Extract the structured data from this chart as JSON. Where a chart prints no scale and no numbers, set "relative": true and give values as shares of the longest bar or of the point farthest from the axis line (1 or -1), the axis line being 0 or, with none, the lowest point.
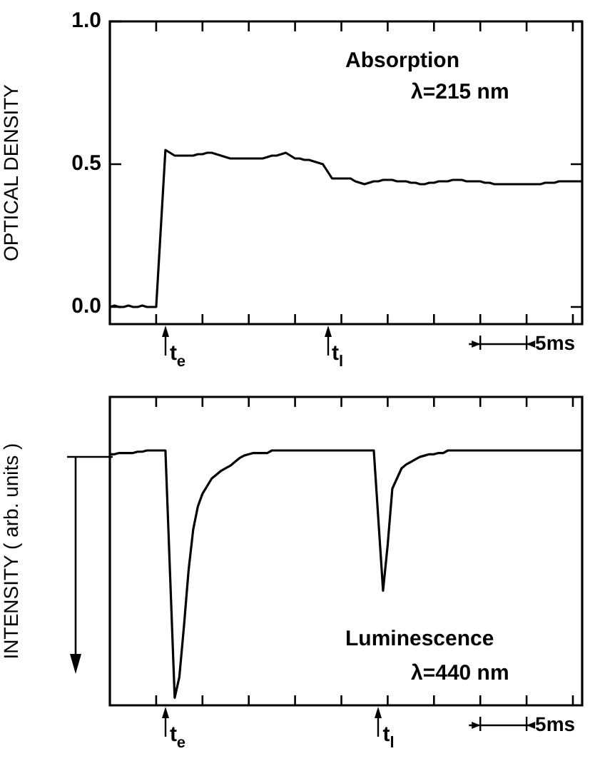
{
  "chart_data": [
    {
      "type": "line",
      "ylabel": "OPTICAL DENSITY",
      "ylim": [
        -0.06,
        1.0
      ],
      "categories": [
        null,
        null,
        null,
        null,
        null,
        null,
        null,
        null,
        null,
        null,
        null,
        null,
        null,
        null,
        null,
        null,
        null,
        null,
        null,
        null,
        null,
        null,
        null,
        null,
        null,
        null,
        null,
        null,
        null,
        null,
        null,
        null,
        null,
        null,
        null,
        null,
        null,
        null,
        null,
        null,
        null,
        null,
        null,
        null,
        null,
        null,
        null,
        null,
        null,
        null,
        null,
        null,
        null,
        null,
        null,
        null,
        null,
        null,
        null,
        null,
        null,
        null,
        null,
        null,
        null,
        null,
        null,
        null,
        null,
        null,
        null,
        null,
        null,
        null,
        null,
        null,
        null,
        null,
        null,
        null,
        null,
        null,
        null,
        null,
        null,
        null,
        null,
        null,
        null,
        null,
        null,
        null,
        null,
        null,
        null,
        null,
        null,
        null,
        null,
        null,
        null,
        null,
        null
      ],
      "yticks": [
        {
          "value": 0,
          "label": "0.0"
        },
        {
          "value": 0.5,
          "label": "0.5"
        },
        {
          "value": 1.0,
          "label": "1.0"
        }
      ],
      "tick_labels": "y",
      "series": [
        {
          "color": "#000000",
          "values": [
            0,
            0.005,
            0,
            0,
            0.005,
            0,
            0,
            0.005,
            0,
            0,
            0,
            null,
            0.55,
            0.54,
            0.53,
            0.53,
            0.53,
            0.53,
            0.53,
            0.535,
            0.535,
            0.54,
            0.54,
            0.535,
            0.53,
            0.525,
            0.52,
            0.52,
            0.52,
            0.52,
            0.52,
            0.52,
            0.52,
            0.52,
            0.525,
            0.53,
            0.53,
            0.535,
            0.54,
            0.53,
            0.52,
            0.52,
            0.515,
            0.515,
            0.51,
            0.505,
            0.5,
            null,
            0.45,
            0.45,
            0.45,
            0.45,
            0.45,
            0.44,
            0.435,
            0.43,
            0.435,
            0.44,
            0.44,
            0.445,
            0.445,
            0.445,
            0.44,
            0.44,
            0.44,
            0.435,
            0.435,
            0.43,
            0.43,
            0.435,
            0.435,
            0.44,
            0.44,
            0.44,
            0.445,
            0.445,
            0.445,
            0.44,
            0.44,
            0.44,
            0.44,
            0.435,
            0.435,
            0.43,
            0.43,
            0.43,
            0.43,
            0.43,
            0.43,
            0.43,
            0.43,
            0.43,
            0.43,
            0.43,
            0.435,
            0.435,
            0.435,
            0.44,
            0.44,
            0.44,
            0.44,
            0.44,
            0.44
          ]
        }
      ],
      "annotations": [
        "Absorption\nλ=215 nm",
        "t$_{e}$",
        "t$_{l}$",
        "5ms"
      ]
    },
    {
      "type": "line",
      "ylabel": "INTENSITY ( arb. units )",
      "relative": true,
      "categories": [
        null,
        null,
        null,
        null,
        null,
        null,
        null,
        null,
        null,
        null,
        null,
        null,
        null,
        null,
        null,
        null,
        null,
        null,
        null,
        null,
        null,
        null,
        null,
        null,
        null,
        null,
        null,
        null,
        null,
        null,
        null,
        null,
        null,
        null,
        null,
        null,
        null,
        null,
        null,
        null,
        null,
        null,
        null,
        null,
        null,
        null,
        null,
        null,
        null,
        null,
        null,
        null,
        null,
        null,
        null,
        null,
        null,
        null,
        null,
        null,
        null,
        null,
        null,
        null,
        null,
        null,
        null,
        null,
        null,
        null,
        null,
        null,
        null,
        null,
        null,
        null,
        null,
        null,
        null,
        null,
        null,
        null,
        null,
        null,
        null,
        null,
        null,
        null,
        null,
        null,
        null,
        null,
        null,
        null,
        null,
        null,
        null,
        null,
        null,
        null,
        null,
        null,
        null
      ],
      "tick_labels": false,
      "series": [
        {
          "color": "#000000",
          "values": [
            0.985,
            0.985,
            0.99,
            0.99,
            0.99,
            0.99,
            0.995,
            0.995,
            1,
            1,
            1,
            1,
            1,
            null,
            0.03,
            0.11,
            0.31,
            0.53,
            0.69,
            0.78,
            0.83,
            0.86,
            0.89,
            0.905,
            0.92,
            0.93,
            0.94,
            0.955,
            0.97,
            0.98,
            0.985,
            0.99,
            0.99,
            0.99,
            0.99,
            1,
            1,
            1,
            1,
            1,
            1,
            1,
            1,
            1,
            1,
            1,
            1,
            1,
            1,
            1,
            1,
            1,
            1,
            1,
            1,
            1,
            1,
            1,
            null,
            0.45,
            0.63,
            0.85,
            0.89,
            0.93,
            0.945,
            0.955,
            0.965,
            0.975,
            0.98,
            0.985,
            0.985,
            0.99,
            0.99,
            1,
            1,
            1,
            1,
            1,
            1,
            1,
            1,
            1,
            1,
            1,
            1,
            1,
            1,
            1,
            1,
            1,
            1,
            1,
            1,
            1,
            1,
            1,
            1,
            1,
            1,
            1,
            1,
            1,
            1
          ]
        }
      ],
      "annotations": [
        "Luminescence\nλ=440 nm",
        "t$_{e}$",
        "t$_{l}$",
        "5ms"
      ]
    }
  ]
}
